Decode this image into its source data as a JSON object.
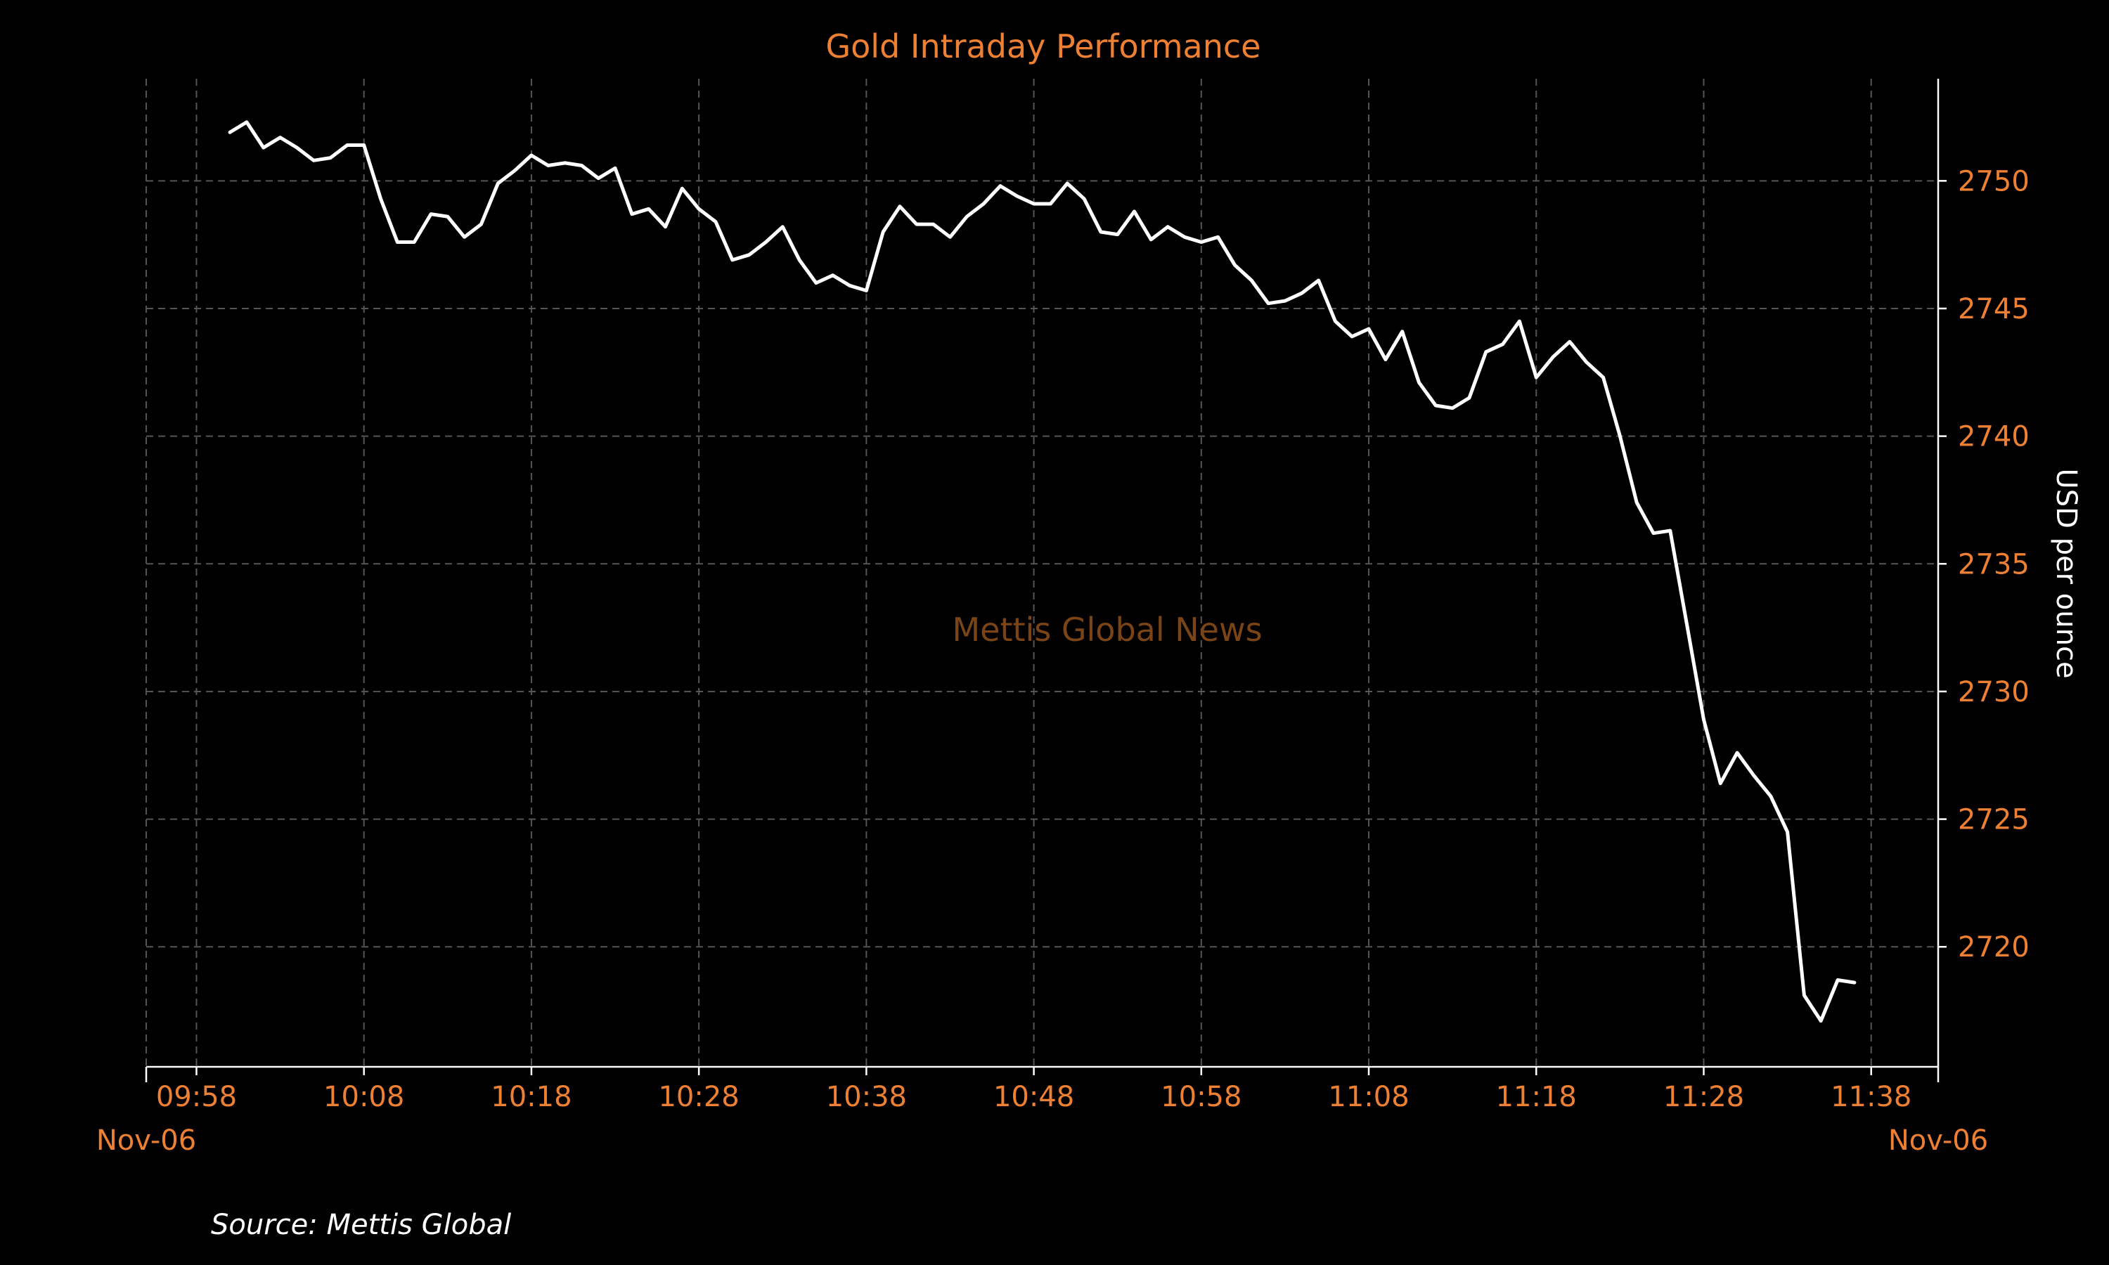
{
  "chart_data": {
    "type": "line",
    "title": "Gold Intraday Performance",
    "ylabel": "USD per ounce",
    "watermark": "Mettis Global News",
    "source": "Source: Mettis Global",
    "x_date_start": "Nov-06",
    "x_date_end": "Nov-06",
    "x_ticks": [
      "09:58",
      "10:08",
      "10:18",
      "10:28",
      "10:38",
      "10:48",
      "10:58",
      "11:08",
      "11:18",
      "11:28",
      "11:38"
    ],
    "y_ticks": [
      2720,
      2725,
      2730,
      2735,
      2740,
      2745,
      2750
    ],
    "xlim": [
      "09:55",
      "11:42"
    ],
    "ylim": [
      2715.3,
      2754.0
    ],
    "y_axis_side": "right",
    "grid": true,
    "colors": {
      "background": "#000000",
      "text": "#ee8033",
      "line": "#ffffff",
      "grid": "#555555",
      "watermark": "#7a4416"
    },
    "series": [
      {
        "x": [
          "10:00",
          "10:01",
          "10:02",
          "10:03",
          "10:04",
          "10:05",
          "10:06",
          "10:07",
          "10:08",
          "10:09",
          "10:10",
          "10:11",
          "10:12",
          "10:13",
          "10:14",
          "10:15",
          "10:16",
          "10:17",
          "10:18",
          "10:19",
          "10:20",
          "10:21",
          "10:22",
          "10:23",
          "10:24",
          "10:25",
          "10:26",
          "10:27",
          "10:28",
          "10:29",
          "10:30",
          "10:31",
          "10:32",
          "10:33",
          "10:34",
          "10:35",
          "10:36",
          "10:37",
          "10:38",
          "10:39",
          "10:40",
          "10:41",
          "10:42",
          "10:43",
          "10:44",
          "10:45",
          "10:46",
          "10:47",
          "10:48",
          "10:49",
          "10:50",
          "10:51",
          "10:52",
          "10:53",
          "10:54",
          "10:55",
          "10:56",
          "10:57",
          "10:58",
          "10:59",
          "11:00",
          "11:01",
          "11:02",
          "11:03",
          "11:04",
          "11:05",
          "11:06",
          "11:07",
          "11:08",
          "11:09",
          "11:10",
          "11:11",
          "11:12",
          "11:13",
          "11:14",
          "11:15",
          "11:16",
          "11:17",
          "11:18",
          "11:19",
          "11:20",
          "11:21",
          "11:22",
          "11:23",
          "11:24",
          "11:25",
          "11:26",
          "11:27",
          "11:28",
          "11:29",
          "11:30",
          "11:31",
          "11:32",
          "11:33",
          "11:34",
          "11:35",
          "11:36",
          "11:37"
        ],
        "values": [
          2751.9,
          2752.3,
          2751.3,
          2751.7,
          2751.3,
          2750.8,
          2750.9,
          2751.4,
          2751.4,
          2749.3,
          2747.6,
          2747.6,
          2748.7,
          2748.6,
          2747.8,
          2748.3,
          2749.9,
          2750.4,
          2751.0,
          2750.6,
          2750.7,
          2750.6,
          2750.1,
          2750.5,
          2748.7,
          2748.9,
          2748.2,
          2749.7,
          2748.9,
          2748.4,
          2746.9,
          2747.1,
          2747.6,
          2748.2,
          2746.9,
          2746.0,
          2746.3,
          2745.9,
          2745.7,
          2748.0,
          2749.0,
          2748.3,
          2748.3,
          2747.8,
          2748.6,
          2749.1,
          2749.8,
          2749.4,
          2749.1,
          2749.1,
          2749.9,
          2749.3,
          2748.0,
          2747.9,
          2748.8,
          2747.7,
          2748.2,
          2747.8,
          2747.6,
          2747.8,
          2746.7,
          2746.1,
          2745.2,
          2745.3,
          2745.6,
          2746.1,
          2744.5,
          2743.9,
          2744.2,
          2743.0,
          2744.1,
          2742.1,
          2741.2,
          2741.1,
          2741.5,
          2743.3,
          2743.6,
          2744.5,
          2742.3,
          2743.1,
          2743.7,
          2742.9,
          2742.3,
          2740.0,
          2737.4,
          2736.2,
          2736.3,
          2732.6,
          2728.9,
          2726.4,
          2727.6,
          2726.7,
          2725.9,
          2724.5,
          2718.1,
          2717.1,
          2718.7,
          2718.6
        ]
      }
    ]
  }
}
